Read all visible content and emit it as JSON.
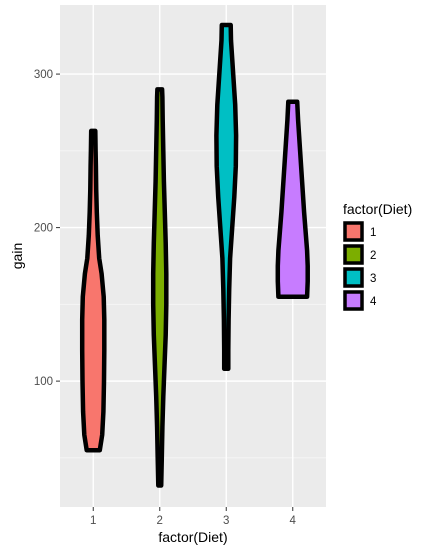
{
  "chart_data": {
    "type": "violin",
    "xlabel": "factor(Diet)",
    "ylabel": "gain",
    "categories": [
      "1",
      "2",
      "3",
      "4"
    ],
    "ylim": [
      18,
      345
    ],
    "yticks": [
      100,
      200,
      300
    ],
    "grid": true,
    "legend": {
      "title": "factor(Diet)",
      "position": "right",
      "entries": [
        "1",
        "2",
        "3",
        "4"
      ]
    },
    "colors": {
      "panel_background": "#ebebeb",
      "grid_major": "#ffffff",
      "grid_minor": "#f5f5f5",
      "outline": "#000000",
      "fills": [
        "#f8766d",
        "#7cae00",
        "#00bfc4",
        "#c77cff"
      ]
    },
    "series": [
      {
        "name": "1",
        "min": 55,
        "max": 263,
        "profile": [
          [
            55,
            0.22
          ],
          [
            65,
            0.3
          ],
          [
            80,
            0.34
          ],
          [
            100,
            0.36
          ],
          [
            120,
            0.37
          ],
          [
            140,
            0.37
          ],
          [
            155,
            0.35
          ],
          [
            170,
            0.28
          ],
          [
            180,
            0.2
          ],
          [
            195,
            0.15
          ],
          [
            210,
            0.12
          ],
          [
            225,
            0.1
          ],
          [
            240,
            0.09
          ],
          [
            250,
            0.08
          ],
          [
            263,
            0.07
          ]
        ]
      },
      {
        "name": "2",
        "min": 32,
        "max": 290,
        "profile": [
          [
            32,
            0.05
          ],
          [
            50,
            0.07
          ],
          [
            70,
            0.09
          ],
          [
            90,
            0.12
          ],
          [
            110,
            0.16
          ],
          [
            130,
            0.2
          ],
          [
            150,
            0.22
          ],
          [
            170,
            0.22
          ],
          [
            190,
            0.2
          ],
          [
            210,
            0.17
          ],
          [
            230,
            0.14
          ],
          [
            250,
            0.12
          ],
          [
            270,
            0.1
          ],
          [
            285,
            0.09
          ],
          [
            290,
            0.08
          ]
        ]
      },
      {
        "name": "3",
        "min": 108,
        "max": 332,
        "profile": [
          [
            108,
            0.07
          ],
          [
            120,
            0.07
          ],
          [
            140,
            0.08
          ],
          [
            160,
            0.1
          ],
          [
            180,
            0.13
          ],
          [
            200,
            0.2
          ],
          [
            220,
            0.27
          ],
          [
            240,
            0.32
          ],
          [
            260,
            0.33
          ],
          [
            280,
            0.3
          ],
          [
            295,
            0.25
          ],
          [
            310,
            0.2
          ],
          [
            322,
            0.16
          ],
          [
            332,
            0.15
          ]
        ]
      },
      {
        "name": "4",
        "min": 155,
        "max": 282,
        "profile": [
          [
            155,
            0.48
          ],
          [
            165,
            0.5
          ],
          [
            175,
            0.5
          ],
          [
            185,
            0.48
          ],
          [
            195,
            0.44
          ],
          [
            210,
            0.38
          ],
          [
            225,
            0.33
          ],
          [
            240,
            0.28
          ],
          [
            255,
            0.23
          ],
          [
            270,
            0.18
          ],
          [
            282,
            0.15
          ]
        ]
      }
    ]
  }
}
